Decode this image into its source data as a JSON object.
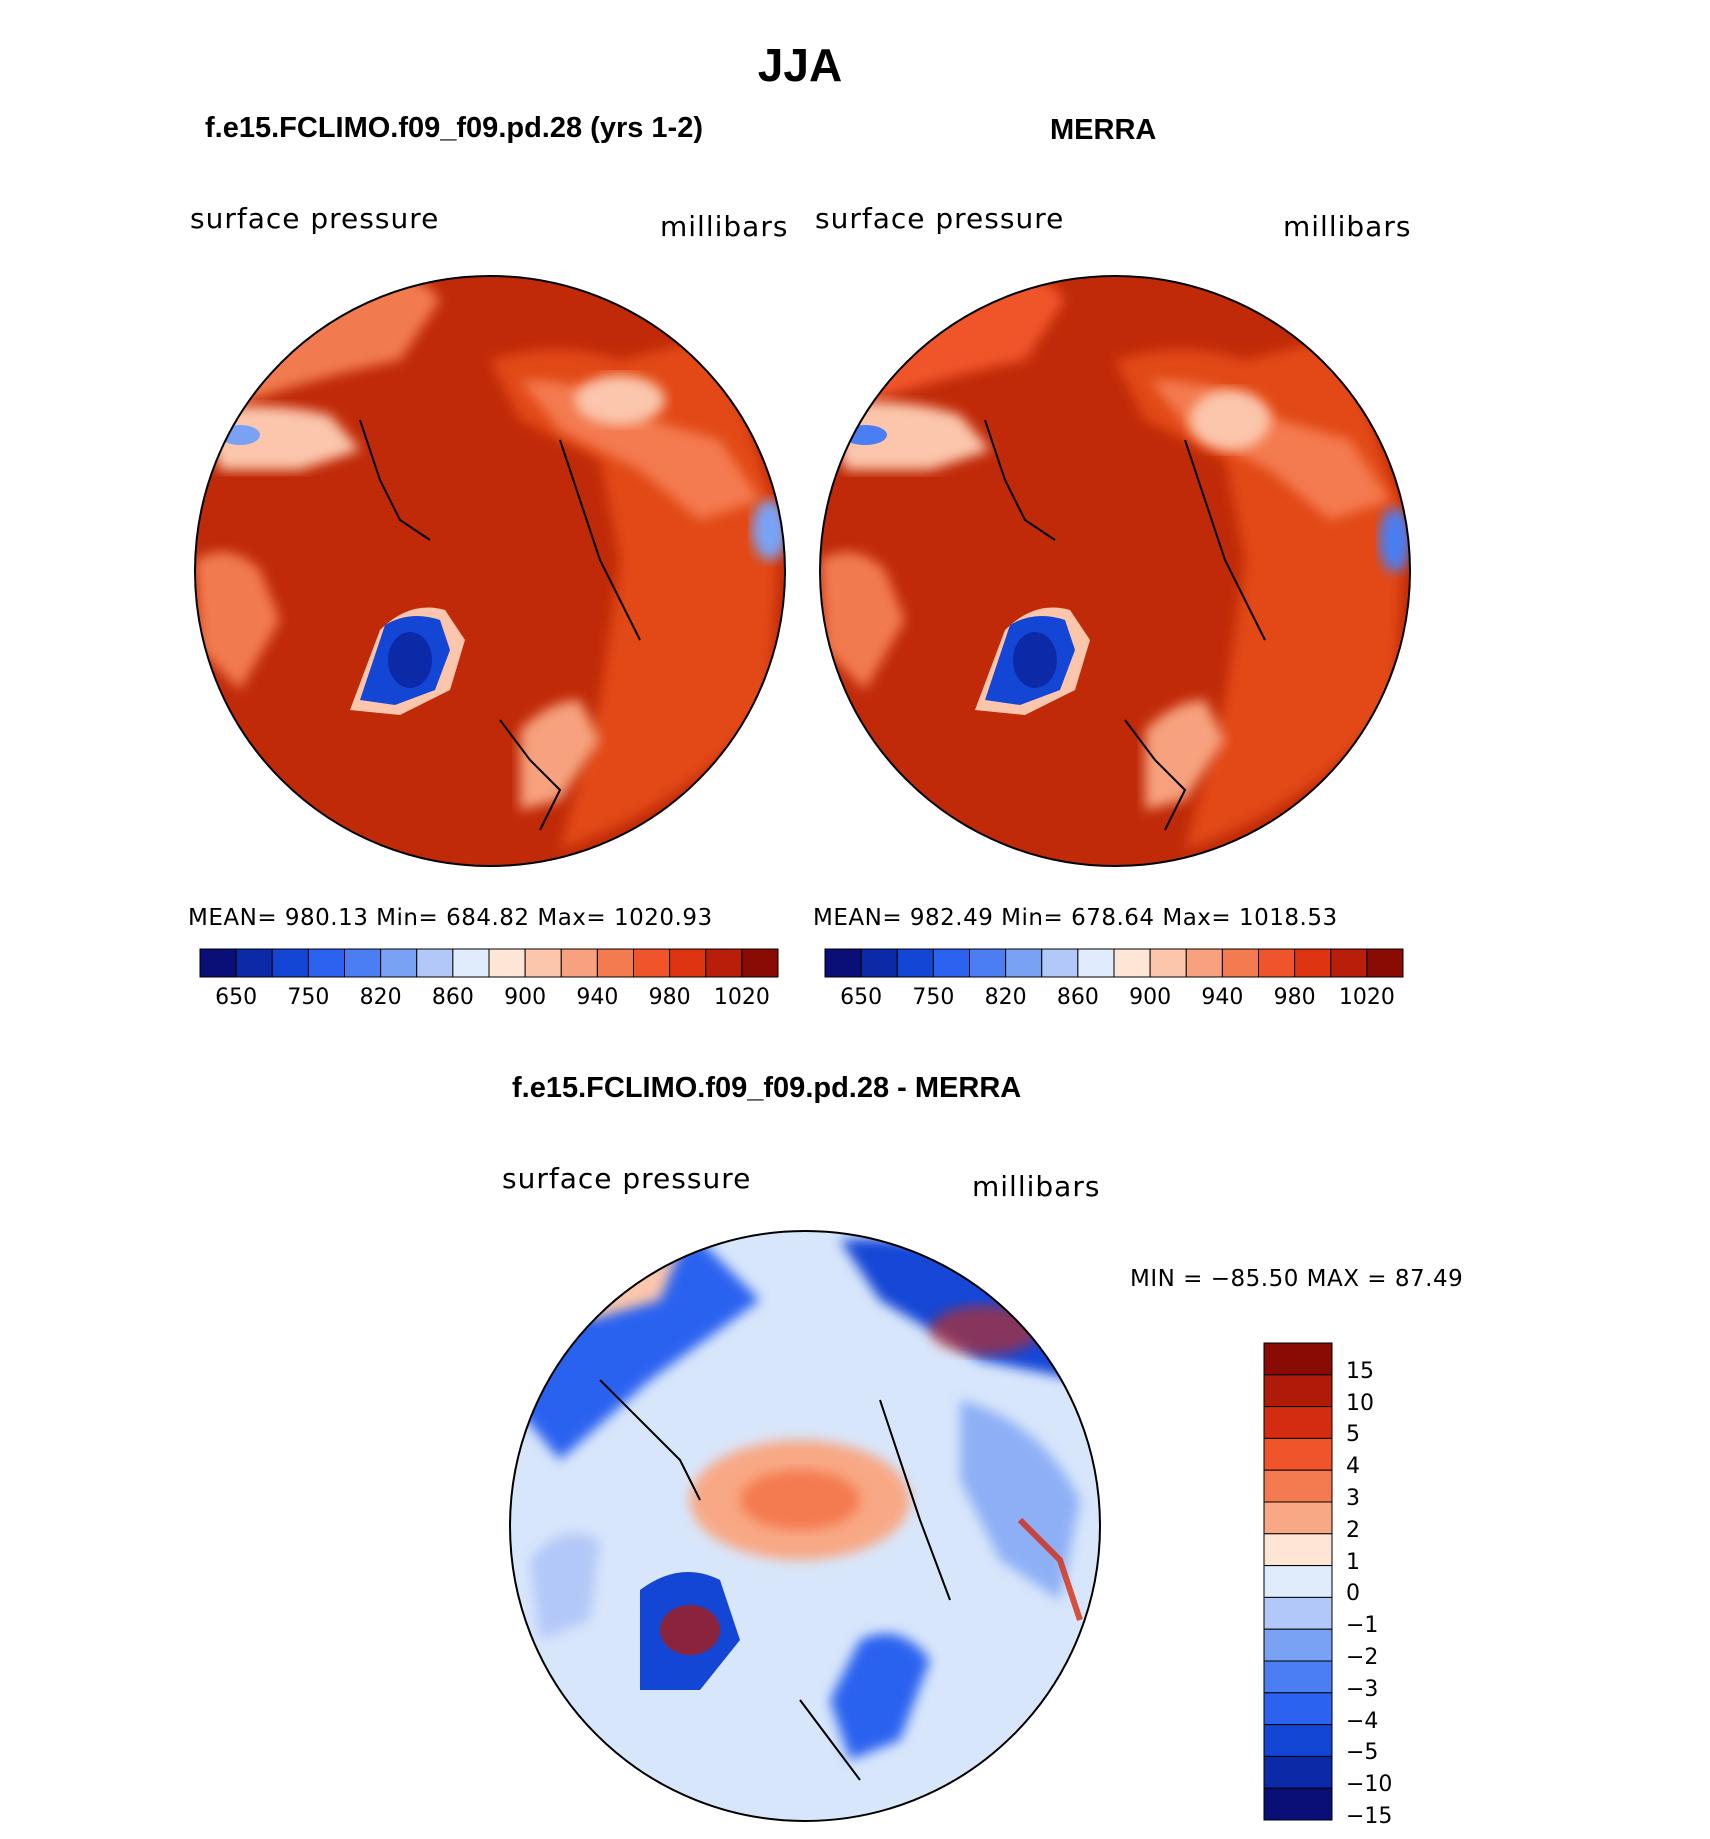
{
  "page": {
    "title": "JJA"
  },
  "panels": [
    {
      "title": "f.e15.FCLIMO.f09_f09.pd.28 (yrs 1-2)",
      "variable": "surface pressure",
      "units": "millibars",
      "stats_text": "MEAN=  980.13    Min=  684.82    Max=  1020.93"
    },
    {
      "title": "MERRA",
      "variable": "surface pressure",
      "units": "millibars",
      "stats_text": "MEAN=  982.49    Min=  678.64    Max=  1018.53"
    }
  ],
  "diff_panel": {
    "title": "f.e15.FCLIMO.f09_f09.pd.28 - MERRA",
    "variable": "surface pressure",
    "units": "millibars",
    "minmax_text": "MIN  =  −85.50  MAX  =    87.49"
  },
  "colorbar_main": {
    "colors": [
      "#0a0f78",
      "#0c2aa8",
      "#1446d6",
      "#2b62f0",
      "#4a7ef2",
      "#7aa2f4",
      "#b2c8f8",
      "#e0ecfb",
      "#fde6d6",
      "#fbc6ac",
      "#f7a17e",
      "#f47a50",
      "#f0542a",
      "#de3412",
      "#b81e0a",
      "#8a0a04"
    ],
    "tick_labels": [
      "650",
      "750",
      "820",
      "860",
      "900",
      "940",
      "980",
      "1020"
    ]
  },
  "colorbar_diff": {
    "colors": [
      "#8a0a04",
      "#b01a08",
      "#d42c10",
      "#f0542a",
      "#f47a50",
      "#f8a884",
      "#fde6d6",
      "#e0ecfb",
      "#b2c8f8",
      "#7aa2f4",
      "#4a7ef2",
      "#2b62f0",
      "#1446d6",
      "#0c2aa8",
      "#0a0f78"
    ],
    "tick_labels": [
      "15",
      "10",
      "5",
      "4",
      "3",
      "2",
      "1",
      "0",
      "−1",
      "−2",
      "−3",
      "−4",
      "−5",
      "−10",
      "−15"
    ]
  },
  "colors": {
    "field_high": "#c02a08",
    "field_mid": "#e24818",
    "ice_sheet": "#1446d6",
    "diff_bg": "#d8e6fb"
  }
}
